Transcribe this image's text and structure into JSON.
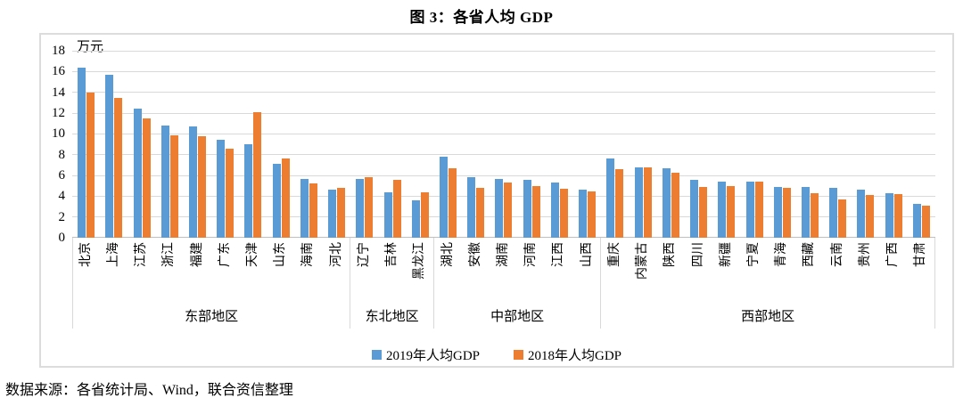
{
  "title": "图 3：各省人均 GDP",
  "source_note": "数据来源：各省统计局、Wind，联合资信整理",
  "chart_data": {
    "type": "bar",
    "title": "图 3：各省人均 GDP",
    "unit_label": "万元",
    "ylabel": "万元",
    "ylim": [
      0,
      18
    ],
    "ytick_step": 2,
    "grid": true,
    "legend_position": "bottom",
    "colors": {
      "blue_2019": "#5B9BD5",
      "orange_2018": "#ED7D31",
      "gridline": "#D9D9D9"
    },
    "categories": [
      "北京",
      "上海",
      "江苏",
      "浙江",
      "福建",
      "广东",
      "天津",
      "山东",
      "海南",
      "河北",
      "辽宁",
      "吉林",
      "黑龙江",
      "湖北",
      "安徽",
      "湖南",
      "河南",
      "江西",
      "山西",
      "重庆",
      "内蒙古",
      "陕西",
      "四川",
      "新疆",
      "宁夏",
      "青海",
      "西藏",
      "云南",
      "贵州",
      "广西",
      "甘肃"
    ],
    "groups": [
      {
        "label": "东部地区",
        "count": 10
      },
      {
        "label": "东北地区",
        "count": 3
      },
      {
        "label": "中部地区",
        "count": 6
      },
      {
        "label": "西部地区",
        "count": 12
      }
    ],
    "series": [
      {
        "name": "2019年人均GDP",
        "color": "#5B9BD5",
        "values": [
          16.4,
          15.7,
          12.4,
          10.8,
          10.7,
          9.4,
          9.0,
          7.1,
          5.7,
          4.6,
          5.7,
          4.4,
          3.6,
          7.8,
          5.8,
          5.7,
          5.6,
          5.3,
          4.6,
          7.6,
          6.8,
          6.7,
          5.6,
          5.4,
          5.4,
          4.9,
          4.9,
          4.8,
          4.6,
          4.3,
          3.3
        ]
      },
      {
        "name": "2018年人均GDP",
        "color": "#ED7D31",
        "values": [
          14.0,
          13.5,
          11.5,
          9.9,
          9.8,
          8.6,
          12.1,
          7.6,
          5.2,
          4.8,
          5.8,
          5.6,
          4.4,
          6.7,
          4.8,
          5.3,
          5.0,
          4.7,
          4.5,
          6.6,
          6.8,
          6.3,
          4.9,
          5.0,
          5.4,
          4.8,
          4.3,
          3.7,
          4.1,
          4.2,
          3.1
        ]
      }
    ]
  }
}
